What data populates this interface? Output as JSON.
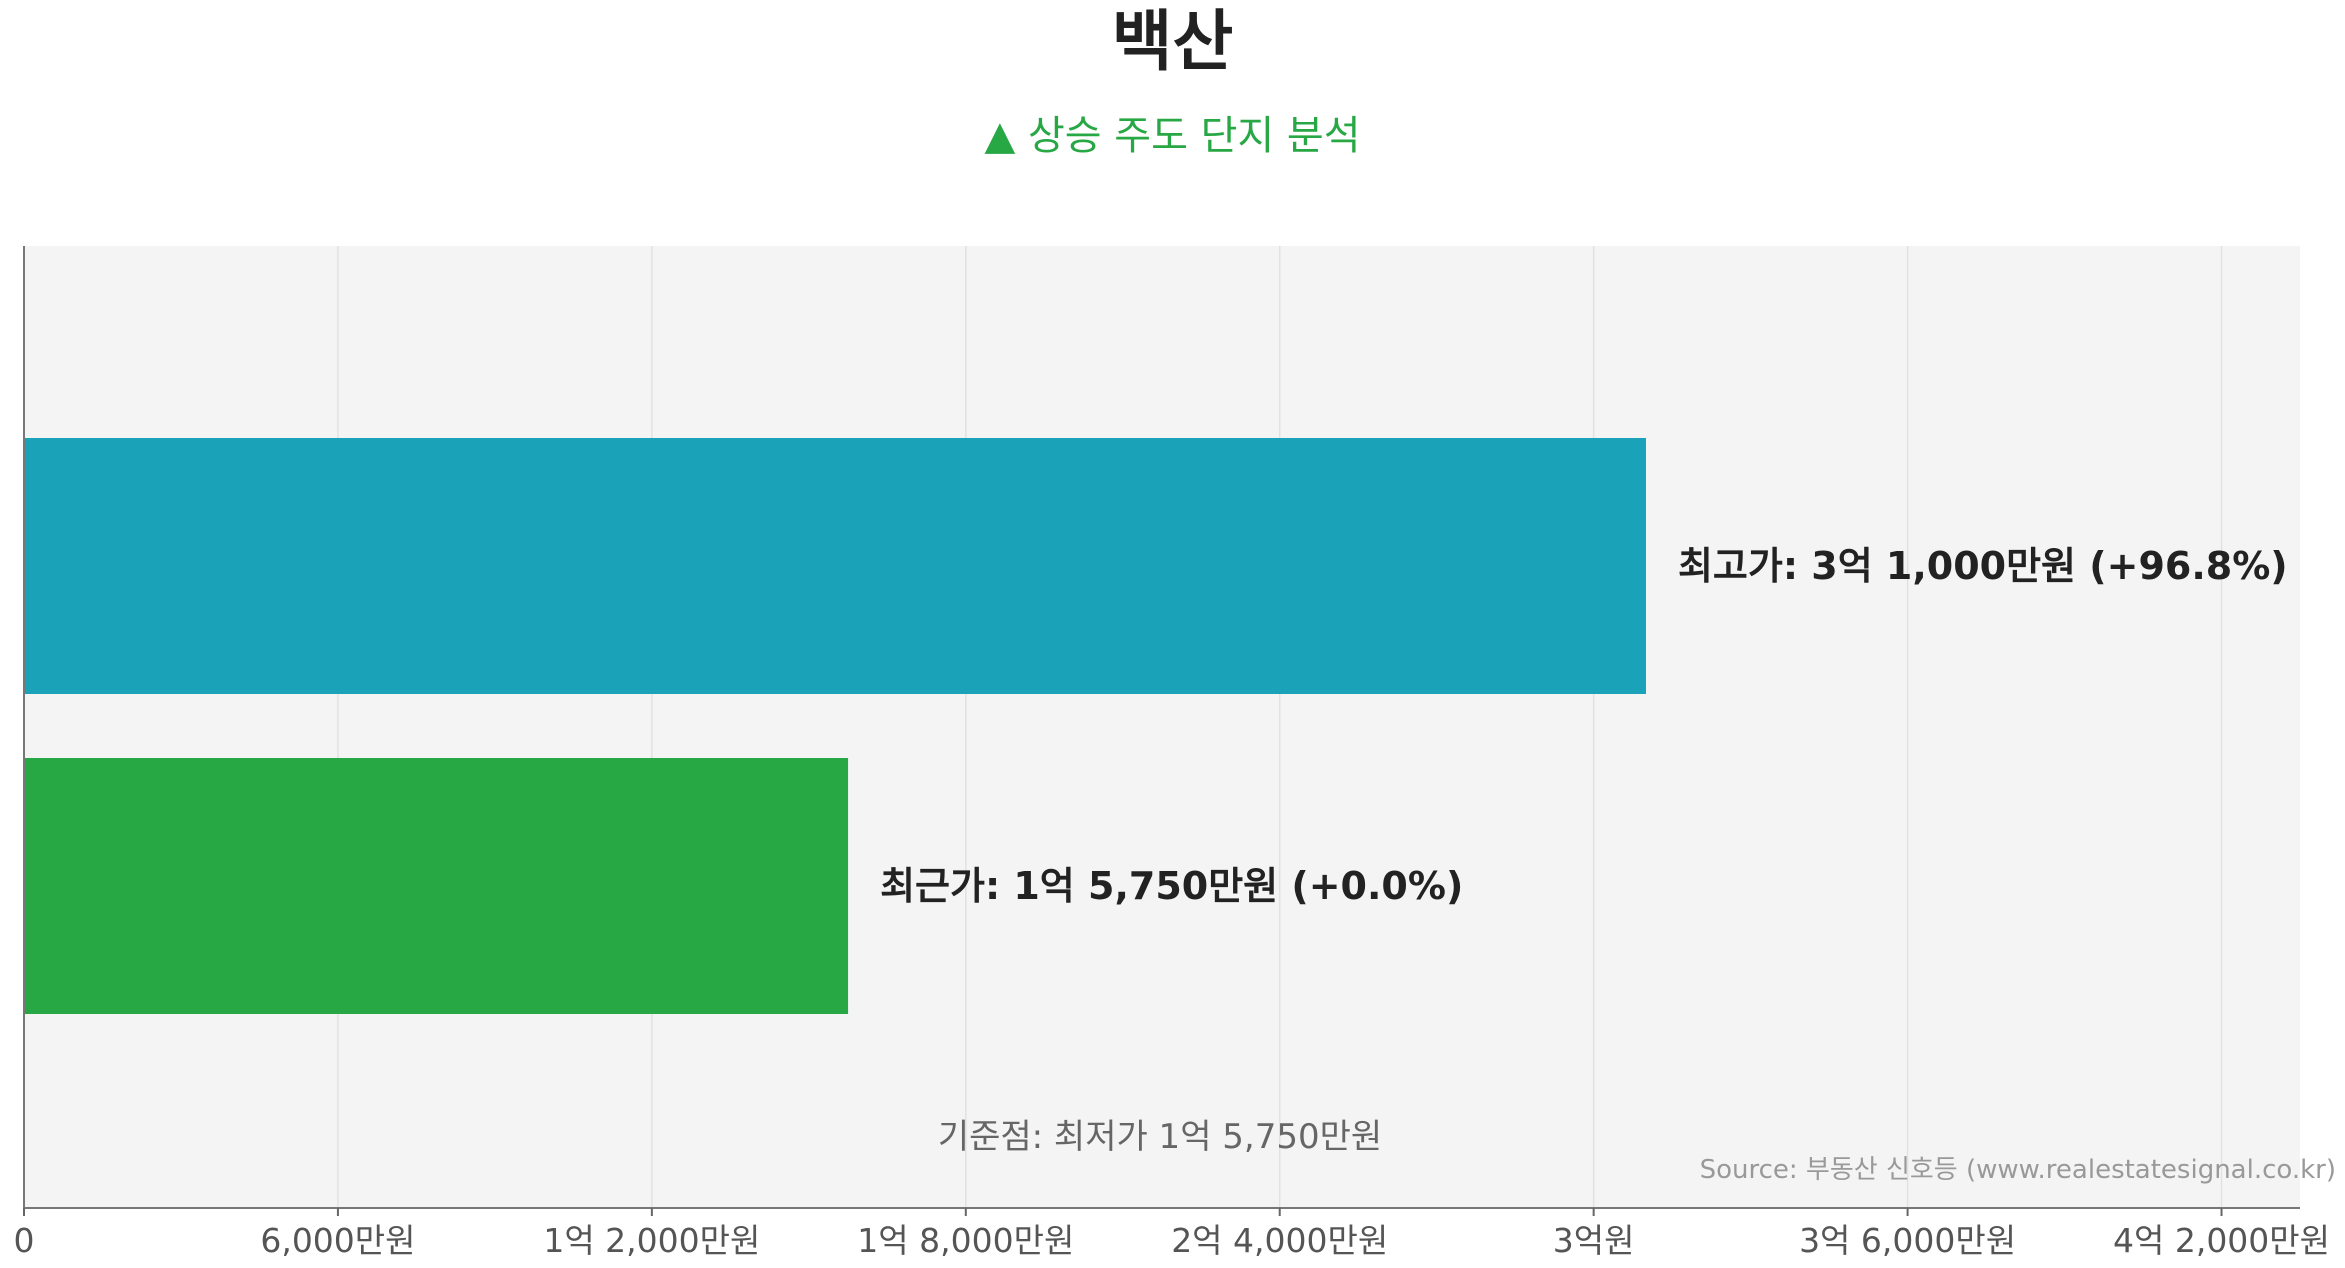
{
  "chart_data": {
    "type": "bar",
    "orientation": "horizontal",
    "title": "백산",
    "subtitle": "▲ 상승 주도 단지 분석",
    "categories": [
      "최고가",
      "최근가"
    ],
    "values": [
      31000,
      15750
    ],
    "value_unit": "만원",
    "bar_labels": [
      "최고가: 3억 1,000만원 (+96.8%)",
      "최근가: 1억 5,750만원 (+0.0%)"
    ],
    "bar_colors": [
      "#1aa2b8",
      "#28a745"
    ],
    "xlim": [
      0,
      43500
    ],
    "x_ticks": [
      {
        "value": 0,
        "label": "0"
      },
      {
        "value": 6000,
        "label": "6,000만원"
      },
      {
        "value": 12000,
        "label": "1억 2,000만원"
      },
      {
        "value": 18000,
        "label": "1억 8,000만원"
      },
      {
        "value": 24000,
        "label": "2억 4,000만원"
      },
      {
        "value": 30000,
        "label": "3억원"
      },
      {
        "value": 36000,
        "label": "3억 6,000만원"
      },
      {
        "value": 42000,
        "label": "4억 2,000만원"
      }
    ],
    "grid": true,
    "annotation": "기준점: 최저가 1억 5,750만원",
    "source": "Source: 부동산 신호등 (www.realestatesignal.co.kr)"
  },
  "colors": {
    "plot_background": "#f4f4f4",
    "grid": "#e2e2e2",
    "subtitle": "#28a745"
  }
}
